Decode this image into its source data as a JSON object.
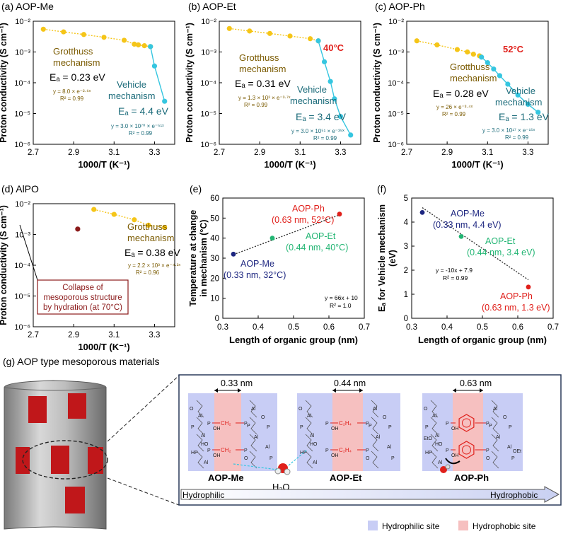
{
  "panels": {
    "a": {
      "label": "(a) AOP-Me"
    },
    "b": {
      "label": "(b) AOP-Et"
    },
    "c": {
      "label": "(c) AOP-Ph"
    },
    "d": {
      "label": "(d) AlPO"
    },
    "e": {
      "label": "(e)"
    },
    "f": {
      "label": "(f)"
    },
    "g": {
      "label": "(g) AOP type mesoporous materials"
    }
  },
  "axes": {
    "cond_ylabel": "Proton conductivity (S cm⁻¹)",
    "cond_xlabel": "1000/T (K⁻¹)",
    "cond_yticks": [
      "10⁻²",
      "10⁻³",
      "10⁻⁴",
      "10⁻⁵",
      "10⁻⁶"
    ],
    "cond_xticks": [
      "2.7",
      "2.9",
      "3.1",
      "3.3"
    ],
    "e_ylabel_1": "Temperature at change",
    "e_ylabel_2": "in mechanism (°C)",
    "f_ylabel_1": "Eₐ for Vehicle mechanism",
    "f_ylabel_2": "(eV)",
    "length_xlabel": "Length of organic group (nm)",
    "length_xticks": [
      "0.3",
      "0.4",
      "0.5",
      "0.6",
      "0.7"
    ],
    "e_yticks": [
      "0",
      "10",
      "20",
      "30",
      "40",
      "50",
      "60"
    ],
    "f_yticks": [
      "0",
      "1",
      "2",
      "3",
      "4",
      "5"
    ]
  },
  "annotations": {
    "a": {
      "grot1": "Grotthuss",
      "grot2": "mechanism",
      "ea_g": "Eₐ = 0.23 eV",
      "fit_g": "y = 8.0 × e⁻²·⁶ˣ",
      "r2_g": "R² = 0.99",
      "veh1": "Vehicle",
      "veh2": "mechanism",
      "ea_v": "Eₐ = 4.4 eV",
      "fit_v": "y = 3.0 × 10⁷⁰ × e⁻⁵¹ˣ",
      "r2_v": "R² = 0.99"
    },
    "b": {
      "temp": "40°C",
      "grot1": "Grotthuss",
      "grot2": "mechanism",
      "ea_g": "Eₐ = 0.31 eV",
      "fit_g": "y = 1.3 × 10² × e⁻³·⁷ˣ",
      "r2_g": "R² = 0.99",
      "veh1": "Vehicle",
      "veh2": "mechanism",
      "ea_v": "Eₐ = 3.4 eV",
      "fit_v": "y = 3.0 × 10⁵¹ × e⁻³⁹ˣ",
      "r2_v": "R² = 0.99"
    },
    "c": {
      "temp": "52°C",
      "grot1": "Grotthuss",
      "grot2": "mechanism",
      "ea_g": "Eₐ = 0.28 eV",
      "fit_g": "y = 26 × e⁻³·⁴ˣ",
      "r2_g": "R² = 0.99",
      "veh1": "Vehicle",
      "veh2": "mechanism",
      "ea_v": "Eₐ = 1.3 eV",
      "fit_v": "y = 3.0 × 10¹⁷ × e⁻¹⁵ˣ",
      "r2_v": "R² = 0.99"
    },
    "d": {
      "grot1": "Grotthuss",
      "grot2": "mechanism",
      "ea_g": "Eₐ = 0.38 eV",
      "fit_g": "y = 2.2 × 10³ × e⁻⁴·²ˣ",
      "r2_g": "R² = 0.96",
      "box1": "Collapse of",
      "box2": "mesoporous structure",
      "box3": "by hydration (at 70°C)"
    },
    "e": {
      "ph1": "AOP-Ph",
      "ph2": "(0.63 nm, 52°C)",
      "et1": "AOP-Et",
      "et2": "(0.44 nm, 40°C)",
      "me1": "AOP-Me",
      "me2": "(0.33 nm, 32°C)",
      "fit": "y = 66x + 10",
      "r2": "R² = 1.0"
    },
    "f": {
      "me1": "AOP-Me",
      "me2": "(0.33 nm, 4.4 eV)",
      "et1": "AOP-Et",
      "et2": "(0.44 nm, 3.4  eV)",
      "ph1": "AOP-Ph",
      "ph2": "(0.63 nm, 1.3 eV)",
      "fit": "y = -10x + 7.9",
      "r2": "R² = 0.99"
    }
  },
  "schematic": {
    "dist_me": "0.33 nm",
    "dist_et": "0.44 nm",
    "dist_ph": "0.63 nm",
    "name_me": "AOP-Me",
    "name_et": "AOP-Et",
    "name_ph": "AOP-Ph",
    "water": "H₂O",
    "hydrophilic": "Hydrophilic",
    "hydrophobic": "Hydrophobic",
    "legend_hydrophilic": "Hydrophilic site",
    "legend_hydrophobic": "Hydrophobic site",
    "group_me": "CH₂",
    "group_et": "C₂H₄",
    "atom_p": "P",
    "atom_al": "Al",
    "atom_o": "O",
    "group_oh": "OH",
    "group_ho": "HO",
    "group_hp": "HP",
    "group_eto": "EtO",
    "group_oet": "OEt"
  },
  "colors": {
    "grotthuss_series": "#f5c518",
    "vehicle_series": "#35c6e0",
    "highlight_red": "#e0201b",
    "navy": "#1d2680",
    "green": "#22b573",
    "hydrophilic_bg": "#c8cdf5",
    "hydrophobic_bg": "#f6c0c0"
  },
  "chart_data": [
    {
      "type": "scatter",
      "title": "AOP-Me",
      "xlabel": "1000/T (K⁻¹)",
      "ylabel": "Proton conductivity (S cm⁻¹)",
      "xlim": [
        2.7,
        3.4
      ],
      "ylim": [
        1e-06,
        0.01
      ],
      "yscale": "log",
      "series": [
        {
          "name": "Grotthuss mechanism",
          "color": "#f5c518",
          "x": [
            2.75,
            2.85,
            2.95,
            3.05,
            3.15,
            3.2,
            3.22,
            3.25,
            3.28
          ],
          "y": [
            0.0055,
            0.0045,
            0.0037,
            0.003,
            0.0024,
            0.0018,
            0.0017,
            0.0016,
            0.0015
          ]
        },
        {
          "name": "Vehicle mechanism",
          "color": "#35c6e0",
          "x": [
            3.28,
            3.3,
            3.35
          ],
          "y": [
            0.0015,
            0.00035,
            2.5e-05
          ]
        }
      ]
    },
    {
      "type": "scatter",
      "title": "AOP-Et",
      "xlabel": "1000/T (K⁻¹)",
      "ylabel": "Proton conductivity (S cm⁻¹)",
      "xlim": [
        2.7,
        3.4
      ],
      "ylim": [
        1e-06,
        0.01
      ],
      "yscale": "log",
      "series": [
        {
          "name": "Grotthuss mechanism",
          "color": "#f5c518",
          "x": [
            2.75,
            2.85,
            2.95,
            3.05,
            3.15,
            3.19
          ],
          "y": [
            0.0058,
            0.0048,
            0.004,
            0.0033,
            0.0027,
            0.0023
          ]
        },
        {
          "name": "Vehicle mechanism",
          "color": "#35c6e0",
          "x": [
            3.19,
            3.22,
            3.25,
            3.27,
            3.3,
            3.35
          ],
          "y": [
            0.0023,
            0.00048,
            0.00011,
            3e-05,
            8e-06,
            2e-06
          ]
        }
      ]
    },
    {
      "type": "scatter",
      "title": "AOP-Ph",
      "xlabel": "1000/T (K⁻¹)",
      "ylabel": "Proton conductivity (S cm⁻¹)",
      "xlim": [
        2.7,
        3.4
      ],
      "ylim": [
        1e-06,
        0.01
      ],
      "yscale": "log",
      "series": [
        {
          "name": "Grotthuss mechanism",
          "color": "#f5c518",
          "x": [
            2.75,
            2.85,
            2.95,
            3.0,
            3.03,
            3.06
          ],
          "y": [
            0.0023,
            0.0017,
            0.0012,
            0.001,
            0.00085,
            0.00075
          ]
        },
        {
          "name": "Vehicle mechanism",
          "color": "#35c6e0",
          "x": [
            3.07,
            3.1,
            3.13,
            3.16,
            3.2,
            3.25,
            3.3,
            3.35
          ],
          "y": [
            0.00068,
            0.00045,
            0.00028,
            0.00017,
            9e-05,
            4e-05,
            2e-05,
            1.1e-05
          ]
        }
      ]
    },
    {
      "type": "scatter",
      "title": "AlPO",
      "xlabel": "1000/T (K⁻¹)",
      "ylabel": "Proton conductivity (S cm⁻¹)",
      "xlim": [
        2.7,
        3.4
      ],
      "ylim": [
        1e-06,
        0.01
      ],
      "yscale": "log",
      "series": [
        {
          "name": "Grotthuss mechanism",
          "color": "#f5c518",
          "x": [
            3.0,
            3.1,
            3.2,
            3.27,
            3.35
          ],
          "y": [
            0.0065,
            0.0045,
            0.003,
            0.002,
            0.0017
          ]
        },
        {
          "name": "Collapse",
          "color": "#8b1a1a",
          "x": [
            2.92
          ],
          "y": [
            0.0015
          ]
        }
      ]
    },
    {
      "type": "scatter",
      "xlabel": "Length of organic group (nm)",
      "ylabel": "Temperature at change in mechanism (°C)",
      "xlim": [
        0.3,
        0.7
      ],
      "ylim": [
        0,
        60
      ],
      "points": [
        {
          "label": "AOP-Me",
          "x": 0.33,
          "y": 32,
          "color": "#1d2680"
        },
        {
          "label": "AOP-Et",
          "x": 0.44,
          "y": 40,
          "color": "#22b573"
        },
        {
          "label": "AOP-Ph",
          "x": 0.63,
          "y": 52,
          "color": "#e0201b"
        }
      ],
      "fit": {
        "slope": 66,
        "intercept": 10
      }
    },
    {
      "type": "scatter",
      "xlabel": "Length of organic group (nm)",
      "ylabel": "Eₐ for Vehicle mechanism (eV)",
      "xlim": [
        0.3,
        0.7
      ],
      "ylim": [
        0,
        5
      ],
      "points": [
        {
          "label": "AOP-Me",
          "x": 0.33,
          "y": 4.4,
          "color": "#1d2680"
        },
        {
          "label": "AOP-Et",
          "x": 0.44,
          "y": 3.4,
          "color": "#22b573"
        },
        {
          "label": "AOP-Ph",
          "x": 0.63,
          "y": 1.3,
          "color": "#e0201b"
        }
      ],
      "fit": {
        "slope": -10,
        "intercept": 7.9
      }
    }
  ]
}
